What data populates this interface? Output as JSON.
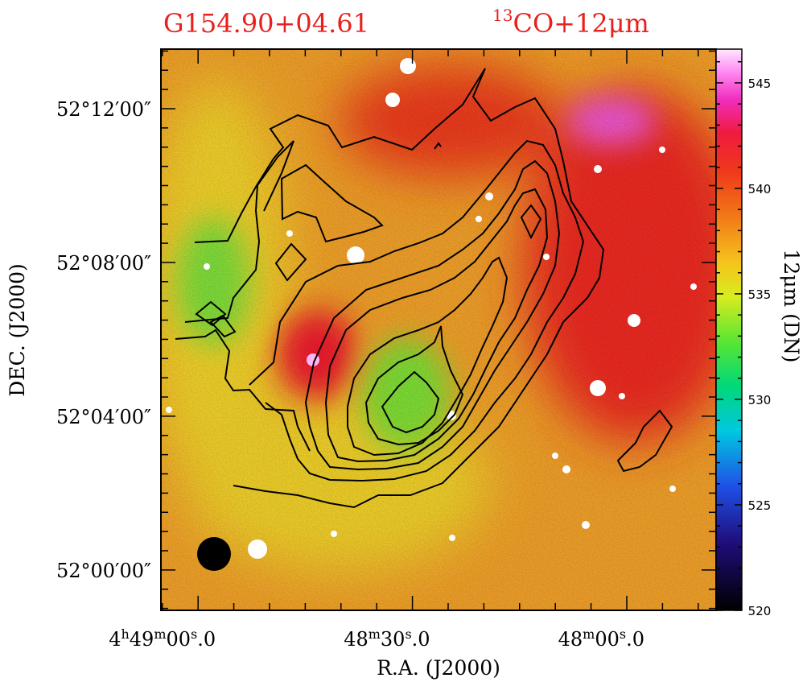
{
  "chart_data": {
    "type": "heatmap",
    "source_name": "G154.90+04.61",
    "map_label_sup": "13",
    "map_label_main": "CO+12μm",
    "xlabel": "R.A.  (J2000)",
    "ylabel": "DEC.  (J2000)",
    "x_ticks": [
      {
        "h": "4",
        "m": "49",
        "s": "00",
        "frac": ".0",
        "ra_sec": 17340
      },
      {
        "h": "",
        "m": "48",
        "s": "30",
        "frac": ".0",
        "ra_sec": 17310
      },
      {
        "h": "",
        "m": "48",
        "s": "00",
        "frac": ".0",
        "ra_sec": 17280
      }
    ],
    "y_ticks": [
      {
        "label": "52°12′00″",
        "dec_arcmin": 12
      },
      {
        "label": "52°08′00″",
        "dec_arcmin": 8
      },
      {
        "label": "52°04′00″",
        "dec_arcmin": 4
      },
      {
        "label": "52°00′00″",
        "dec_arcmin": 0
      }
    ],
    "x_range_ra_sec": [
      17345.2,
      17267.5
    ],
    "y_range_dec_arcmin": [
      -1.05,
      13.55
    ],
    "colorbar": {
      "label": "12μm (DN)",
      "range": [
        520,
        546.6
      ],
      "ticks": [
        520,
        525,
        530,
        535,
        540,
        545
      ]
    },
    "contour_levels_count": 9,
    "peak_position": {
      "ra_sec": 17312.5,
      "dec_arcmin": 4.8
    },
    "beam_marker": "filled-circle"
  }
}
